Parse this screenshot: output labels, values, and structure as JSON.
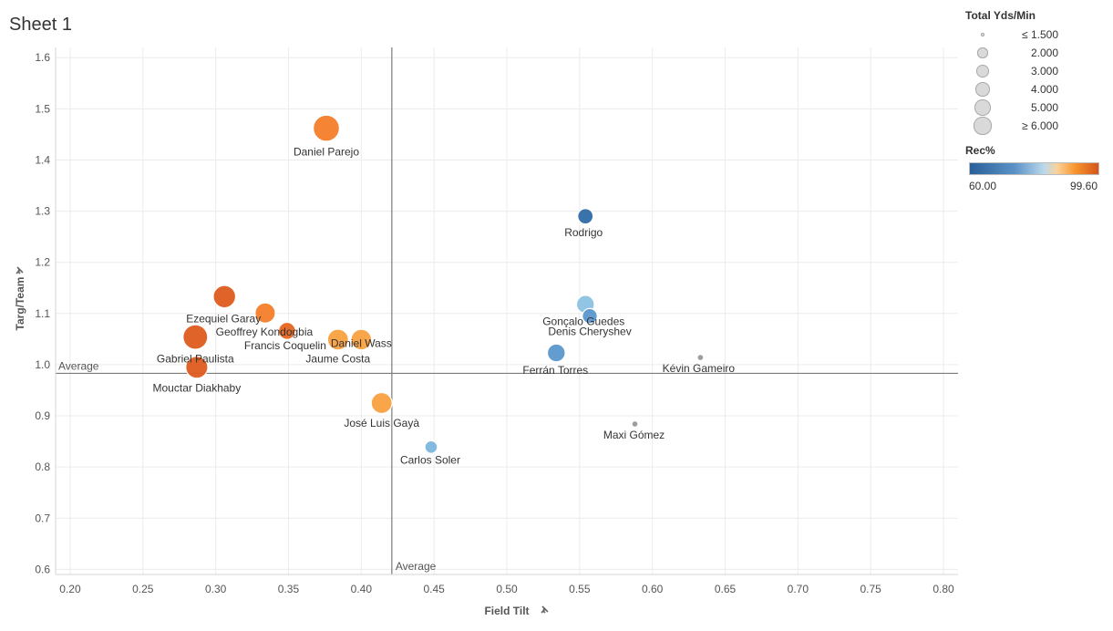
{
  "sheet": {
    "title": "Sheet 1"
  },
  "legend": {
    "size_title": "Total Yds/Min",
    "size_items": [
      "≤ 1.500",
      "2.000",
      "3.000",
      "4.000",
      "5.000",
      "≥ 6.000"
    ],
    "color_title": "Rec%",
    "color_min": "60.00",
    "color_max": "99.60"
  },
  "colors": {
    "orange": "#f47e29",
    "dark_orange": "#de5b1f",
    "light_orange": "#f9a03f",
    "dark_blue": "#2f6aa8",
    "mid_blue": "#5b97cc",
    "light_blue": "#8cc1e3",
    "gridline": "#ececec",
    "refline": "#7a7a7a"
  },
  "chart_data": {
    "type": "scatter",
    "xlabel": "Field Tilt",
    "ylabel": "Targ/Team",
    "xlim": [
      0.19,
      0.81
    ],
    "ylim": [
      0.59,
      1.62
    ],
    "x_ticks": [
      "0.20",
      "0.25",
      "0.30",
      "0.35",
      "0.40",
      "0.45",
      "0.50",
      "0.55",
      "0.60",
      "0.65",
      "0.70",
      "0.75",
      "0.80"
    ],
    "y_ticks": [
      "0.6",
      "0.7",
      "0.8",
      "0.9",
      "1.0",
      "1.1",
      "1.2",
      "1.3",
      "1.4",
      "1.5",
      "1.6"
    ],
    "reference_lines": {
      "x_average": 0.421,
      "y_average": 0.983,
      "x_label": "Average",
      "y_label": "Average"
    },
    "grid": true,
    "size_measure": "Total Yds/Min",
    "color_measure": "Rec%",
    "points": [
      {
        "name": "Daniel Parejo",
        "x": 0.376,
        "y": 1.462,
        "size": 5.2,
        "color": "#f47e29"
      },
      {
        "name": "Rodrigo",
        "x": 0.554,
        "y": 1.29,
        "size": 1.8,
        "color": "#2f6aa8"
      },
      {
        "name": "Ezequiel Garay",
        "x": 0.306,
        "y": 1.133,
        "size": 3.8,
        "color": "#de5b1f"
      },
      {
        "name": "Geoffrey Kondogbia",
        "x": 0.334,
        "y": 1.101,
        "size": 3.1,
        "color": "#f47e29"
      },
      {
        "name": "Francis Coquelin",
        "x": 0.349,
        "y": 1.066,
        "size": 2.2,
        "color": "#e8651f"
      },
      {
        "name": "Jaume Costa",
        "x": 0.384,
        "y": 1.049,
        "size": 3.3,
        "color": "#f9a03f"
      },
      {
        "name": "Daniel Wass",
        "x": 0.4,
        "y": 1.049,
        "size": 3.2,
        "color": "#f9a03f"
      },
      {
        "name": "Gabriel Paulista",
        "x": 0.286,
        "y": 1.054,
        "size": 4.6,
        "color": "#de5b1f"
      },
      {
        "name": "Mouctar Diakhaby",
        "x": 0.287,
        "y": 0.995,
        "size": 3.7,
        "color": "#de5b1f"
      },
      {
        "name": "Gonçalo Guedes",
        "x": 0.554,
        "y": 1.118,
        "size": 2.4,
        "color": "#8cc1e3"
      },
      {
        "name": "Denis Cheryshev",
        "x": 0.557,
        "y": 1.095,
        "size": 1.7,
        "color": "#5b97cc"
      },
      {
        "name": "Ferrán Torres",
        "x": 0.534,
        "y": 1.023,
        "size": 2.4,
        "color": "#5b97cc"
      },
      {
        "name": "Kévin Gameiro",
        "x": 0.633,
        "y": 1.014,
        "size": 0.3,
        "color": "#999999"
      },
      {
        "name": "José Luis Gayà",
        "x": 0.414,
        "y": 0.925,
        "size": 3.3,
        "color": "#f9a03f"
      },
      {
        "name": "Maxi Gómez",
        "x": 0.588,
        "y": 0.884,
        "size": 0.3,
        "color": "#999999"
      },
      {
        "name": "Carlos Soler",
        "x": 0.448,
        "y": 0.839,
        "size": 1.2,
        "color": "#7db6de"
      }
    ]
  }
}
